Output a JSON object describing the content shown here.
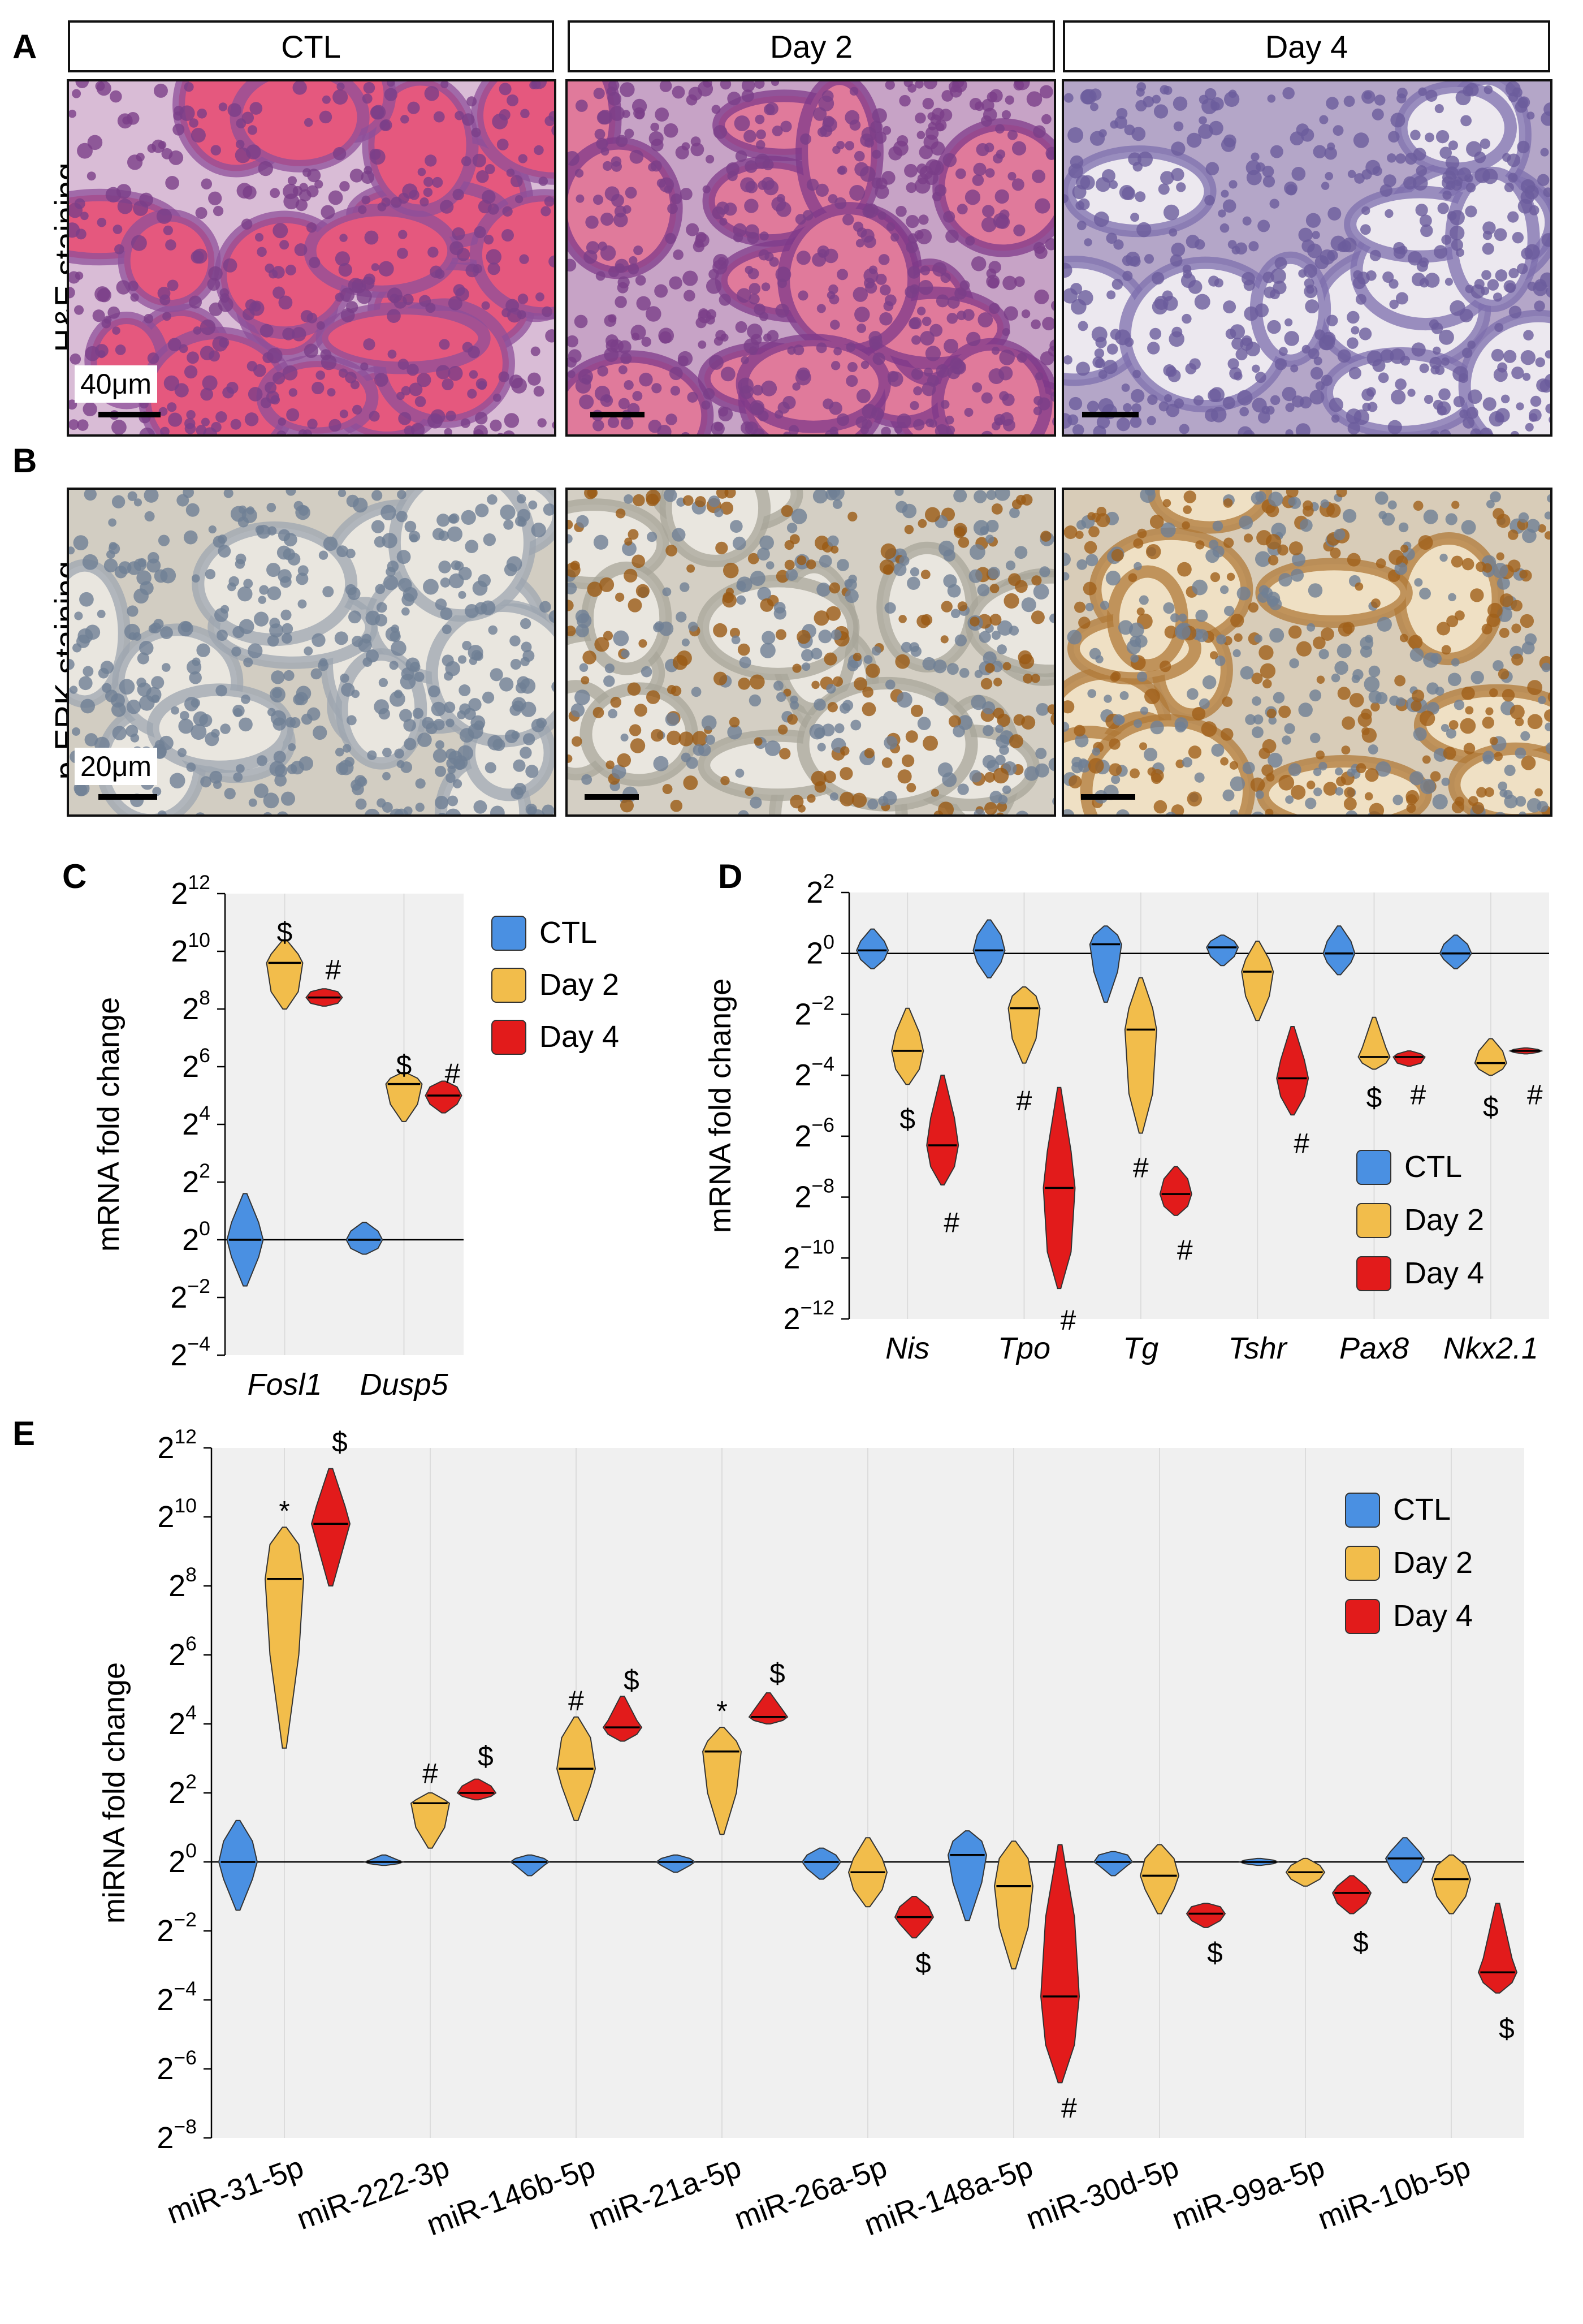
{
  "panels": {
    "A": "A",
    "B": "B",
    "C": "C",
    "D": "D",
    "E": "E"
  },
  "columns": [
    "CTL",
    "Day 2",
    "Day 4"
  ],
  "rowA": {
    "ylabel": "H&E staining",
    "scale": "40μm"
  },
  "rowB": {
    "ylabel": "p-ERK staining",
    "scale": "20μm"
  },
  "colors": {
    "CTL": "#4a90e2",
    "Day 2": "#f2bd4b",
    "Day 4": "#e21b1b",
    "he_bg": "#c9a8c8",
    "he_follicle": "#e5587e",
    "he_cell": "#7a3f88",
    "erk_bg": "#d6d2c8",
    "erk_follicle": "#e9e6df",
    "erk_cell": "#6f7f95",
    "erk_brown": "#a86a22"
  },
  "chart_data": [
    {
      "id": "C",
      "type": "violin",
      "ylabel": "mRNA fold change",
      "categories": [
        "Fosl1",
        "Dusp5"
      ],
      "y_ticks": [
        12,
        10,
        8,
        6,
        4,
        2,
        0,
        -2,
        -4
      ],
      "y_tick_base": "2",
      "ylim_log2": [
        -4,
        12
      ],
      "legend": [
        "CTL",
        "Day 2",
        "Day 4"
      ],
      "legend_position": "right-outside",
      "series": [
        {
          "name": "CTL",
          "stats": [
            {
              "min": -1.6,
              "q1": -0.6,
              "median": 0,
              "q3": 0.6,
              "max": 1.6
            },
            {
              "min": -0.5,
              "q1": -0.3,
              "median": 0,
              "q3": 0.3,
              "max": 0.6
            }
          ]
        },
        {
          "name": "Day 2",
          "stats": [
            {
              "min": 8,
              "q1": 8.6,
              "median": 9.6,
              "q3": 9.9,
              "max": 10.4
            },
            {
              "min": 4.1,
              "q1": 4.7,
              "median": 5.4,
              "q3": 5.6,
              "max": 5.8
            }
          ]
        },
        {
          "name": "Day 4",
          "stats": [
            {
              "min": 8.1,
              "q1": 8.2,
              "median": 8.4,
              "q3": 8.6,
              "max": 8.7
            },
            {
              "min": 4.4,
              "q1": 4.7,
              "median": 5,
              "q3": 5.3,
              "max": 5.5
            }
          ]
        }
      ],
      "annotations": [
        {
          "cat": 0,
          "series": "Day 2",
          "text": "$",
          "y": 10.7
        },
        {
          "cat": 0,
          "series": "Day 4",
          "text": "#",
          "y": 9.4
        },
        {
          "cat": 1,
          "series": "Day 2",
          "text": "$",
          "y": 6.1
        },
        {
          "cat": 1,
          "series": "Day 4",
          "text": "#",
          "y": 5.8
        }
      ]
    },
    {
      "id": "D",
      "type": "violin",
      "ylabel": "mRNA fold change",
      "categories": [
        "Nis",
        "Tpo",
        "Tg",
        "Tshr",
        "Pax8",
        "Nkx2.1"
      ],
      "y_ticks": [
        2,
        0,
        -2,
        -4,
        -6,
        -8,
        -10,
        -12
      ],
      "y_tick_base": "2",
      "ylim_log2": [
        -12,
        2
      ],
      "legend": [
        "CTL",
        "Day 2",
        "Day 4"
      ],
      "legend_position": "bottom-right",
      "series": [
        {
          "name": "CTL",
          "stats": [
            {
              "min": -0.5,
              "q1": -0.2,
              "median": 0.1,
              "q3": 0.4,
              "max": 0.8
            },
            {
              "min": -0.8,
              "q1": -0.3,
              "median": 0.1,
              "q3": 0.6,
              "max": 1.1
            },
            {
              "min": -1.6,
              "q1": -0.6,
              "median": 0.3,
              "q3": 0.6,
              "max": 0.9
            },
            {
              "min": -0.4,
              "q1": -0.1,
              "median": 0.2,
              "q3": 0.4,
              "max": 0.6
            },
            {
              "min": -0.7,
              "q1": -0.3,
              "median": 0,
              "q3": 0.4,
              "max": 0.9
            },
            {
              "min": -0.5,
              "q1": -0.2,
              "median": 0,
              "q3": 0.3,
              "max": 0.6
            }
          ]
        },
        {
          "name": "Day 2",
          "stats": [
            {
              "min": -4.3,
              "q1": -3.8,
              "median": -3.2,
              "q3": -2.6,
              "max": -1.8
            },
            {
              "min": -3.6,
              "q1": -2.8,
              "median": -1.8,
              "q3": -1.4,
              "max": -1.1
            },
            {
              "min": -5.9,
              "q1": -4.6,
              "median": -2.5,
              "q3": -1.8,
              "max": -0.8
            },
            {
              "min": -2.2,
              "q1": -1.4,
              "median": -0.6,
              "q3": -0.2,
              "max": 0.4
            },
            {
              "min": -3.8,
              "q1": -3.6,
              "median": -3.4,
              "q3": -3.1,
              "max": -2.1
            },
            {
              "min": -4,
              "q1": -3.8,
              "median": -3.6,
              "q3": -3.2,
              "max": -2.8
            }
          ]
        },
        {
          "name": "Day 4",
          "stats": [
            {
              "min": -7.6,
              "q1": -7,
              "median": -6.3,
              "q3": -5.4,
              "max": -4
            },
            {
              "min": -11,
              "q1": -9.8,
              "median": -7.7,
              "q3": -6.5,
              "max": -4.4
            },
            {
              "min": -8.6,
              "q1": -8.3,
              "median": -7.9,
              "q3": -7.4,
              "max": -7
            },
            {
              "min": -5.3,
              "q1": -4.7,
              "median": -4.1,
              "q3": -3.5,
              "max": -2.4
            },
            {
              "min": -3.7,
              "q1": -3.6,
              "median": -3.4,
              "q3": -3.3,
              "max": -3.2
            },
            {
              "min": -3.3,
              "q1": -3.25,
              "median": -3.2,
              "q3": -3.15,
              "max": -3.1
            }
          ]
        }
      ],
      "annotations": [
        {
          "cat": 0,
          "series": "Day 2",
          "text": "$",
          "y": -5.4
        },
        {
          "cat": 0,
          "series": "Day 4",
          "text": "#",
          "y": -8.8
        },
        {
          "cat": 1,
          "series": "Day 2",
          "text": "#",
          "y": -4.8
        },
        {
          "cat": 1,
          "series": "Day 4",
          "text": "#",
          "y": -12
        },
        {
          "cat": 2,
          "series": "Day 2",
          "text": "#",
          "y": -7
        },
        {
          "cat": 2,
          "series": "Day 4",
          "text": "#",
          "y": -9.7
        },
        {
          "cat": 3,
          "series": "Day 4",
          "text": "#",
          "y": -6.2
        },
        {
          "cat": 4,
          "series": "Day 2",
          "text": "$",
          "y": -4.7
        },
        {
          "cat": 4,
          "series": "Day 4",
          "text": "#",
          "y": -4.6
        },
        {
          "cat": 5,
          "series": "Day 2",
          "text": "$",
          "y": -5
        },
        {
          "cat": 5,
          "series": "Day 4",
          "text": "#",
          "y": -4.6
        }
      ]
    },
    {
      "id": "E",
      "type": "violin",
      "ylabel": "miRNA fold change",
      "categories": [
        "miR-31-5p",
        "miR-222-3p",
        "miR-146b-5p",
        "miR-21a-5p",
        "miR-26a-5p",
        "miR-148a-5p",
        "miR-30d-5p",
        "miR-99a-5p",
        "miR-10b-5p"
      ],
      "y_ticks": [
        12,
        10,
        8,
        6,
        4,
        2,
        0,
        -2,
        -4,
        -6,
        -8
      ],
      "y_tick_base": "2",
      "ylim_log2": [
        -8,
        12
      ],
      "legend": [
        "CTL",
        "Day 2",
        "Day 4"
      ],
      "legend_position": "top-right",
      "series": [
        {
          "name": "CTL",
          "stats": [
            {
              "min": -1.4,
              "q1": -0.5,
              "median": 0,
              "q3": 0.6,
              "max": 1.2
            },
            {
              "min": -0.1,
              "q1": -0.05,
              "median": 0,
              "q3": 0.05,
              "max": 0.2
            },
            {
              "min": -0.4,
              "q1": -0.1,
              "median": 0,
              "q3": 0.1,
              "max": 0.2
            },
            {
              "min": -0.3,
              "q1": -0.1,
              "median": 0,
              "q3": 0.1,
              "max": 0.2
            },
            {
              "min": -0.5,
              "q1": -0.2,
              "median": 0,
              "q3": 0.2,
              "max": 0.4
            },
            {
              "min": -1.7,
              "q1": -0.6,
              "median": 0.2,
              "q3": 0.6,
              "max": 0.9
            },
            {
              "min": -0.4,
              "q1": -0.1,
              "median": 0,
              "q3": 0.2,
              "max": 0.3
            },
            {
              "min": -0.1,
              "q1": -0.05,
              "median": 0,
              "q3": 0.05,
              "max": 0.1
            },
            {
              "min": -0.6,
              "q1": -0.2,
              "median": 0.1,
              "q3": 0.3,
              "max": 0.7
            }
          ]
        },
        {
          "name": "Day 2",
          "stats": [
            {
              "min": 3.3,
              "q1": 6,
              "median": 8.2,
              "q3": 9.2,
              "max": 9.7
            },
            {
              "min": 0.4,
              "q1": 1,
              "median": 1.7,
              "q3": 1.8,
              "max": 2
            },
            {
              "min": 1.2,
              "q1": 2.2,
              "median": 2.7,
              "q3": 3.6,
              "max": 4.2
            },
            {
              "min": 0.8,
              "q1": 2,
              "median": 3.2,
              "q3": 3.5,
              "max": 3.9
            },
            {
              "min": -1.3,
              "q1": -0.8,
              "median": -0.3,
              "q3": 0.1,
              "max": 0.7
            },
            {
              "min": -3.1,
              "q1": -1.9,
              "median": -0.7,
              "q3": 0.1,
              "max": 0.6
            },
            {
              "min": -1.5,
              "q1": -0.8,
              "median": -0.4,
              "q3": 0.1,
              "max": 0.5
            },
            {
              "min": -0.7,
              "q1": -0.5,
              "median": -0.3,
              "q3": -0.1,
              "max": 0.1
            },
            {
              "min": -1.5,
              "q1": -1,
              "median": -0.5,
              "q3": -0.1,
              "max": 0.2
            }
          ]
        },
        {
          "name": "Day 4",
          "stats": [
            {
              "min": 8,
              "q1": 9.3,
              "median": 9.8,
              "q3": 10.3,
              "max": 11.4
            },
            {
              "min": 1.8,
              "q1": 1.9,
              "median": 2,
              "q3": 2.2,
              "max": 2.4
            },
            {
              "min": 3.5,
              "q1": 3.7,
              "median": 3.9,
              "q3": 4.1,
              "max": 4.8
            },
            {
              "min": 4,
              "q1": 4.1,
              "median": 4.2,
              "q3": 4.4,
              "max": 4.9
            },
            {
              "min": -2.2,
              "q1": -1.8,
              "median": -1.6,
              "q3": -1.3,
              "max": -1
            },
            {
              "min": -6.4,
              "q1": -5.3,
              "median": -3.9,
              "q3": -1.6,
              "max": 0.5
            },
            {
              "min": -1.9,
              "q1": -1.7,
              "median": -1.5,
              "q3": -1.3,
              "max": -1.2
            },
            {
              "min": -1.5,
              "q1": -1.2,
              "median": -0.9,
              "q3": -0.7,
              "max": -0.4
            },
            {
              "min": -3.8,
              "q1": -3.5,
              "median": -3.2,
              "q3": -2.8,
              "max": -1.2
            }
          ]
        }
      ],
      "annotations": [
        {
          "cat": 0,
          "series": "Day 2",
          "text": "*",
          "y": 10.2
        },
        {
          "cat": 0,
          "series": "Day 4",
          "text": "$",
          "y": 12.2
        },
        {
          "cat": 1,
          "series": "Day 2",
          "text": "#",
          "y": 2.6
        },
        {
          "cat": 1,
          "series": "Day 4",
          "text": "$",
          "y": 3.1
        },
        {
          "cat": 2,
          "series": "Day 2",
          "text": "#",
          "y": 4.7
        },
        {
          "cat": 2,
          "series": "Day 4",
          "text": "$",
          "y": 5.3
        },
        {
          "cat": 3,
          "series": "Day 2",
          "text": "*",
          "y": 4.4
        },
        {
          "cat": 3,
          "series": "Day 4",
          "text": "$",
          "y": 5.5
        },
        {
          "cat": 4,
          "series": "Day 4",
          "text": "$",
          "y": -2.9
        },
        {
          "cat": 5,
          "series": "Day 4",
          "text": "#",
          "y": -7.1
        },
        {
          "cat": 6,
          "series": "Day 4",
          "text": "$",
          "y": -2.6
        },
        {
          "cat": 7,
          "series": "Day 4",
          "text": "$",
          "y": -2.3
        },
        {
          "cat": 8,
          "series": "Day 4",
          "text": "$",
          "y": -4.8
        }
      ]
    }
  ]
}
